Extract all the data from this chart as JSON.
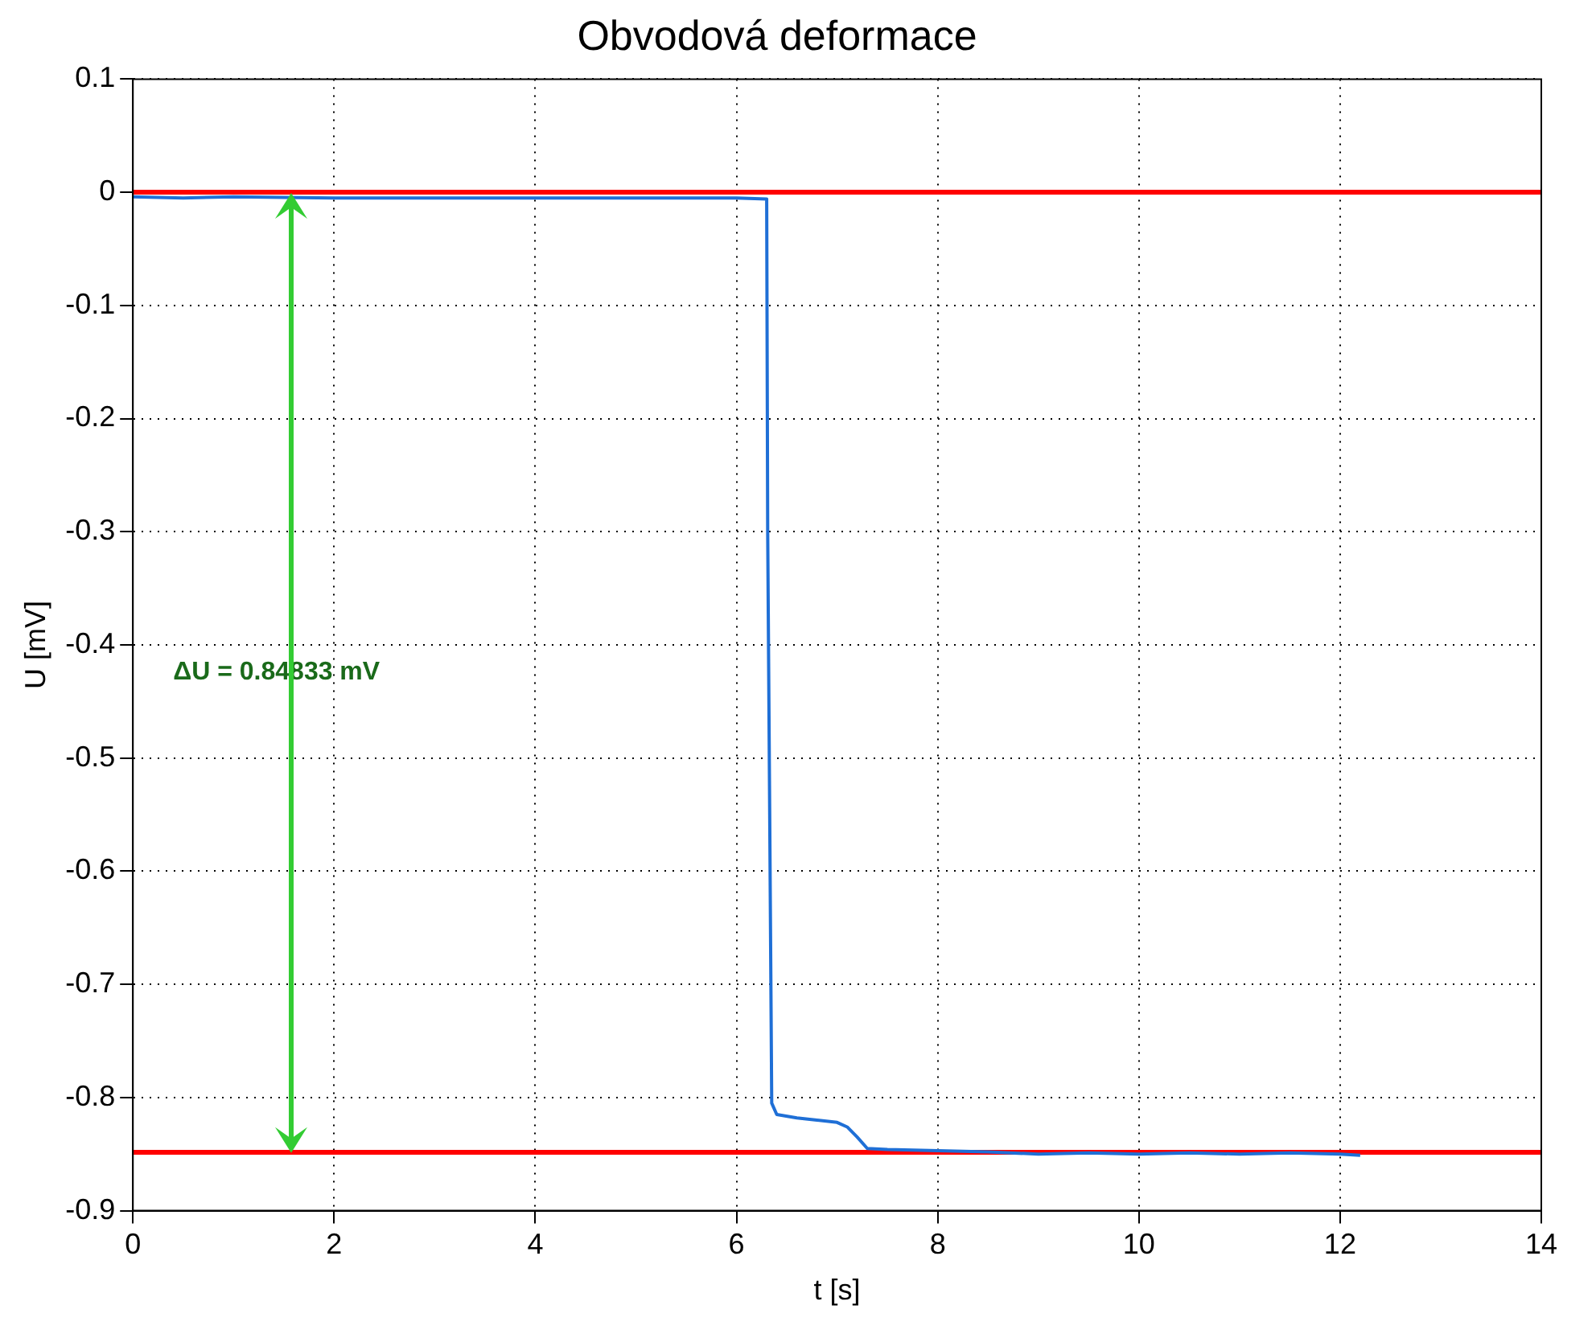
{
  "chart_data": {
    "type": "line",
    "title": "Obvodová deformace",
    "xlabel": "t [s]",
    "ylabel": "U [mV]",
    "series": [
      {
        "color": "#1f6fd6",
        "x": [
          0,
          0.5,
          1,
          2,
          3,
          4,
          5,
          5.5,
          6,
          6.3,
          6.31,
          6.33,
          6.35,
          6.4,
          6.6,
          6.8,
          7.0,
          7.1,
          7.2,
          7.3,
          7.5,
          8,
          8.5,
          9,
          9.5,
          10,
          10.5,
          11,
          11.5,
          12,
          12.2
        ],
        "values": [
          -0.004,
          -0.005,
          -0.004,
          -0.005,
          -0.005,
          -0.005,
          -0.005,
          -0.005,
          -0.005,
          -0.006,
          -0.3,
          -0.55,
          -0.805,
          -0.815,
          -0.818,
          -0.82,
          -0.822,
          -0.826,
          -0.835,
          -0.845,
          -0.846,
          -0.847,
          -0.848,
          -0.85,
          -0.849,
          -0.85,
          -0.849,
          -0.85,
          -0.849,
          -0.85,
          -0.851
        ]
      }
    ],
    "xlim": [
      0,
      14
    ],
    "xticks": [
      0,
      2,
      4,
      6,
      8,
      10,
      12,
      14
    ],
    "ylim": [
      -0.9,
      0.1
    ],
    "yticks": [
      -0.9,
      -0.8,
      -0.7,
      -0.6,
      -0.5,
      -0.4,
      -0.3,
      -0.2,
      -0.1,
      0,
      0.1
    ],
    "grid": true,
    "legend": false,
    "marker": "none",
    "line_style": "solid",
    "ref_lines": [
      {
        "axis": "y",
        "value": 0,
        "color": "#ff0000"
      },
      {
        "axis": "y",
        "value": -0.84833,
        "color": "#ff0000"
      }
    ],
    "annotations": [
      "ΔU = 0.84833 mV"
    ]
  }
}
